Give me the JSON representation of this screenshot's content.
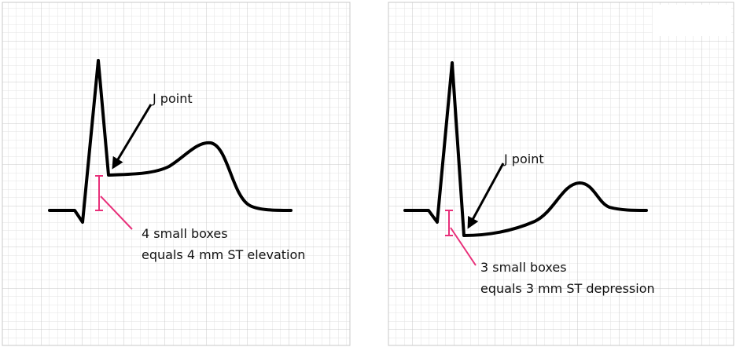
{
  "panels": [
    {
      "j_label": "J point",
      "caption": [
        "4 small boxes",
        "equals 4 mm ST elevation"
      ]
    },
    {
      "j_label": "J point",
      "caption": [
        "3 small boxes",
        "equals 3 mm ST depression"
      ]
    }
  ]
}
